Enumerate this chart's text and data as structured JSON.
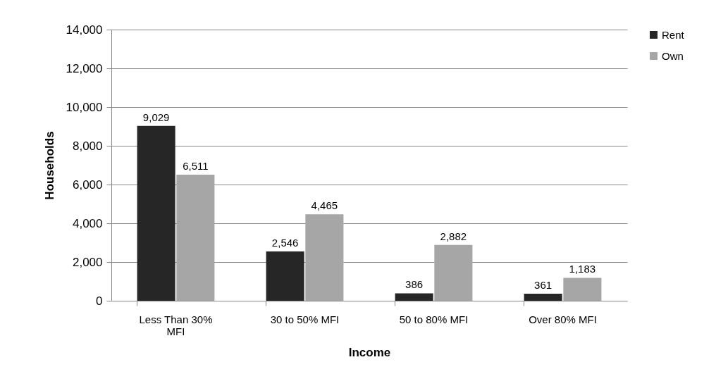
{
  "chart_data": {
    "type": "bar",
    "xlabel": "Income",
    "ylabel": "Households",
    "categories": [
      "Less Than 30% MFI",
      "30 to 50% MFI",
      "50 to 80% MFI",
      "Over 80% MFI"
    ],
    "series": [
      {
        "name": "Rent",
        "color": "#262626",
        "values": [
          9029,
          2546,
          386,
          361
        ],
        "value_labels": [
          "9,029",
          "2,546",
          "386",
          "361"
        ]
      },
      {
        "name": "Own",
        "color": "#a6a6a6",
        "values": [
          6511,
          4465,
          2882,
          1183
        ],
        "value_labels": [
          "6,511",
          "4,465",
          "2,882",
          "1,183"
        ]
      }
    ],
    "ylim": [
      0,
      14000
    ],
    "yticks": [
      0,
      {
        "value": 2000,
        "label": "2,000"
      },
      {
        "value": 4000,
        "label": "4,000"
      },
      {
        "value": 6000,
        "label": "6,000"
      },
      {
        "value": 8000,
        "label": "8,000"
      },
      {
        "value": 10000,
        "label": "10,000"
      },
      {
        "value": 12000,
        "label": "12,000"
      },
      {
        "value": 14000,
        "label": "14,000"
      }
    ],
    "grid": "y",
    "legend": "right"
  }
}
